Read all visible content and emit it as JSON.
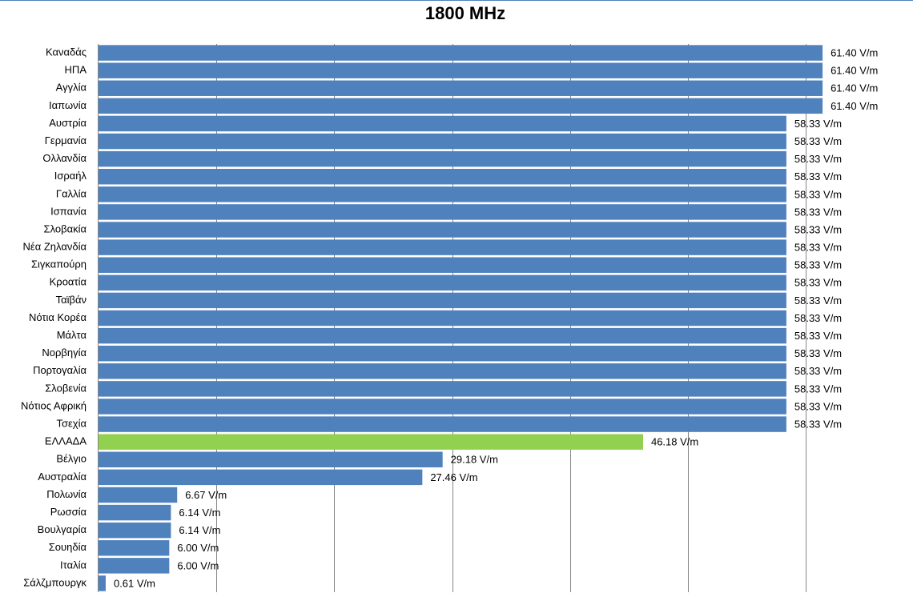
{
  "chart_data": {
    "type": "hbar",
    "title": "1800 MHz",
    "categories": [
      "Καναδάς",
      "ΗΠΑ",
      "Αγγλία",
      "Ιαπωνία",
      "Αυστρία",
      "Γερμανία",
      "Ολλανδία",
      "Ισραήλ",
      "Γαλλία",
      "Ισπανία",
      "Σλοβακία",
      "Νέα Ζηλανδία",
      "Σιγκαπούρη",
      "Κροατία",
      "Ταϊβάν",
      "Νότια Κορέα",
      "Μάλτα",
      "Νορβηγία",
      "Πορτογαλία",
      "Σλοβενία",
      "Νότιος Αφρική",
      "Τσεχία",
      "ΕΛΛΑΔΑ",
      "Βέλγιο",
      "Αυστραλία",
      "Πολωνία",
      "Ρωσσία",
      "Βουλγαρία",
      "Σουηδία",
      "Ιταλία",
      "Σάλζμπουργκ"
    ],
    "values": [
      61.4,
      61.4,
      61.4,
      61.4,
      58.33,
      58.33,
      58.33,
      58.33,
      58.33,
      58.33,
      58.33,
      58.33,
      58.33,
      58.33,
      58.33,
      58.33,
      58.33,
      58.33,
      58.33,
      58.33,
      58.33,
      58.33,
      46.18,
      29.18,
      27.46,
      6.67,
      6.14,
      6.14,
      6.0,
      6.0,
      0.61
    ],
    "value_labels": [
      "61.40 V/m",
      "61.40 V/m",
      "61.40 V/m",
      "61.40 V/m",
      "58.33 V/m",
      "58.33 V/m",
      "58.33 V/m",
      "58.33 V/m",
      "58.33 V/m",
      "58.33 V/m",
      "58.33 V/m",
      "58.33 V/m",
      "58.33 V/m",
      "58.33 V/m",
      "58.33 V/m",
      "58.33 V/m",
      "58.33 V/m",
      "58.33 V/m",
      "58.33 V/m",
      "58.33 V/m",
      "58.33 V/m",
      "58.33 V/m",
      "46.18 V/m",
      "29.18 V/m",
      "27.46 V/m",
      "6.67 V/m",
      "6.14 V/m",
      "6.14 V/m",
      "6.00 V/m",
      "6.00 V/m",
      "0.61 V/m"
    ],
    "colors": [
      "#4f81bd",
      "#4f81bd",
      "#4f81bd",
      "#4f81bd",
      "#4f81bd",
      "#4f81bd",
      "#4f81bd",
      "#4f81bd",
      "#4f81bd",
      "#4f81bd",
      "#4f81bd",
      "#4f81bd",
      "#4f81bd",
      "#4f81bd",
      "#4f81bd",
      "#4f81bd",
      "#4f81bd",
      "#4f81bd",
      "#4f81bd",
      "#4f81bd",
      "#4f81bd",
      "#4f81bd",
      "#92d050",
      "#4f81bd",
      "#4f81bd",
      "#4f81bd",
      "#4f81bd",
      "#4f81bd",
      "#4f81bd",
      "#4f81bd",
      "#4f81bd"
    ],
    "xlim": [
      0,
      69
    ],
    "xticks": [
      10,
      20,
      30,
      40,
      50,
      60
    ],
    "grid": true
  }
}
